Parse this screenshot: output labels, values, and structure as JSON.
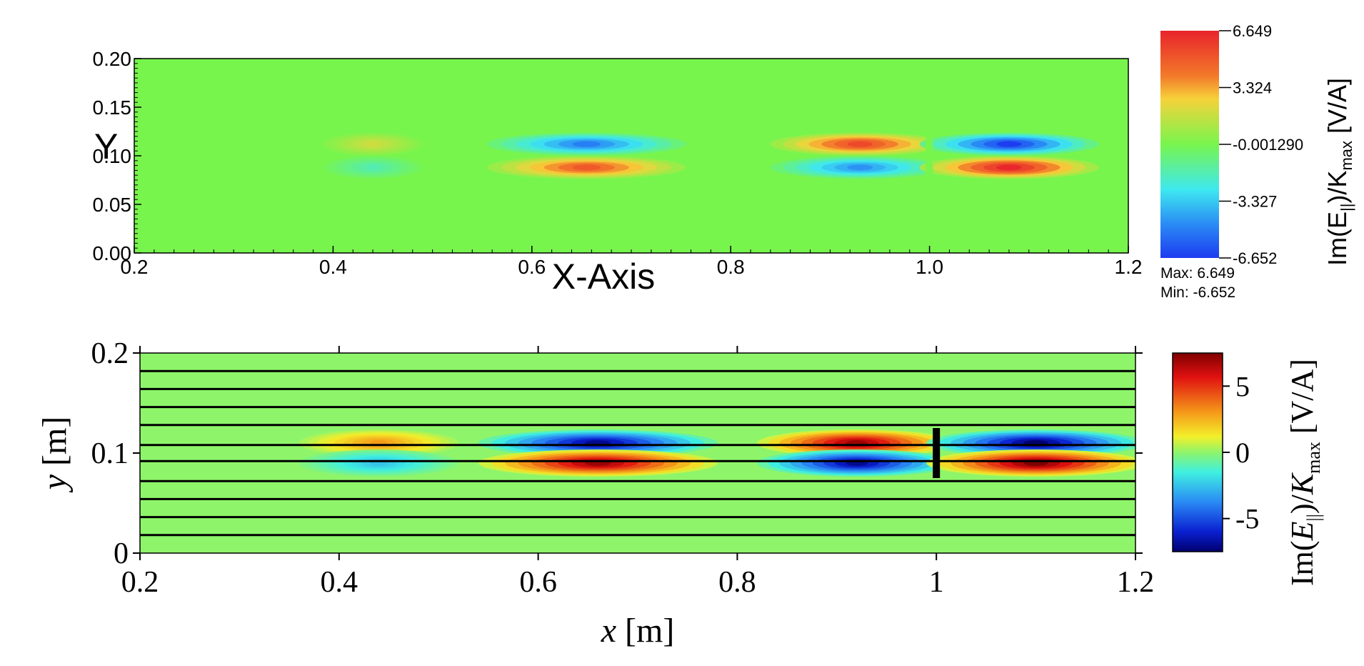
{
  "chart_data": [
    {
      "type": "heatmap",
      "style": "visit-render",
      "title": "",
      "xlabel": "X-Axis",
      "ylabel": "Y",
      "xlim": [
        0.2,
        1.2
      ],
      "ylim": [
        0.0,
        0.2
      ],
      "x_ticks": [
        "0.2",
        "0.4",
        "0.6",
        "0.8",
        "1.0",
        "1.2"
      ],
      "y_ticks": [
        "0.00",
        "0.05",
        "0.10",
        "0.15",
        "0.20"
      ],
      "colorbar": {
        "label_main": "Im(E",
        "label_sub": "||",
        "label_mid": ")/K",
        "label_sub2": "max",
        "label_unit": " [V/A]",
        "tick_labels": [
          "6.649",
          "3.324",
          "-0.001290",
          "-3.327",
          "-6.652"
        ],
        "tick_values": [
          6.649,
          3.324,
          -0.00129,
          -3.327,
          -6.652
        ],
        "max_text": "Max:  6.649",
        "min_text": "Min: -6.652"
      },
      "lobes": [
        {
          "cx": 0.44,
          "cy": 0.112,
          "w": 0.1,
          "amp": 1.8
        },
        {
          "cx": 0.44,
          "cy": 0.088,
          "w": 0.1,
          "amp": -1.6
        },
        {
          "cx": 0.655,
          "cy": 0.112,
          "w": 0.2,
          "amp": -5.0
        },
        {
          "cx": 0.655,
          "cy": 0.088,
          "w": 0.2,
          "amp": 5.0
        },
        {
          "cx": 0.93,
          "cy": 0.112,
          "w": 0.18,
          "amp": 5.5
        },
        {
          "cx": 0.93,
          "cy": 0.088,
          "w": 0.18,
          "amp": -4.5
        },
        {
          "cx": 1.08,
          "cy": 0.112,
          "w": 0.18,
          "amp": -6.6
        },
        {
          "cx": 1.08,
          "cy": 0.088,
          "w": 0.18,
          "amp": 6.6
        }
      ]
    },
    {
      "type": "heatmap",
      "style": "contour-publication",
      "title": "",
      "xlabel_var": "x",
      "xlabel_unit": " [m]",
      "ylabel_var": "y",
      "ylabel_unit": " [m]",
      "xlim": [
        0.2,
        1.2
      ],
      "ylim": [
        0,
        0.2
      ],
      "x_ticks": [
        "0.2",
        "0.4",
        "0.6",
        "0.8",
        "1",
        "1.2"
      ],
      "y_ticks": [
        "0",
        "0.1",
        "0.2"
      ],
      "field_lines_y": [
        0.018,
        0.036,
        0.054,
        0.072,
        0.092,
        0.108,
        0.128,
        0.146,
        0.164,
        0.182
      ],
      "antenna": {
        "x": 1.0,
        "y0": 0.075,
        "y1": 0.125
      },
      "colorbar": {
        "label_main": "Im(",
        "label_var": "E",
        "label_sub": "||",
        "label_mid": ")/",
        "label_var2": "K",
        "label_sub2": "max",
        "label_unit": " [V/A]",
        "tick_labels": [
          "5",
          "0",
          "-5"
        ],
        "tick_values": [
          5,
          0,
          -5
        ],
        "range": [
          -7.5,
          7.5
        ]
      },
      "lobes": [
        {
          "cx": 0.44,
          "cy": 0.11,
          "w": 0.16,
          "amp": 3.0
        },
        {
          "cx": 0.44,
          "cy": 0.09,
          "w": 0.16,
          "amp": -2.5
        },
        {
          "cx": 0.66,
          "cy": 0.11,
          "w": 0.24,
          "amp": -7.0
        },
        {
          "cx": 0.66,
          "cy": 0.09,
          "w": 0.24,
          "amp": 7.0
        },
        {
          "cx": 0.92,
          "cy": 0.11,
          "w": 0.2,
          "amp": 7.0
        },
        {
          "cx": 0.92,
          "cy": 0.09,
          "w": 0.2,
          "amp": -7.0
        },
        {
          "cx": 1.1,
          "cy": 0.11,
          "w": 0.22,
          "amp": -7.5
        },
        {
          "cx": 1.1,
          "cy": 0.09,
          "w": 0.22,
          "amp": 7.5
        }
      ]
    }
  ]
}
